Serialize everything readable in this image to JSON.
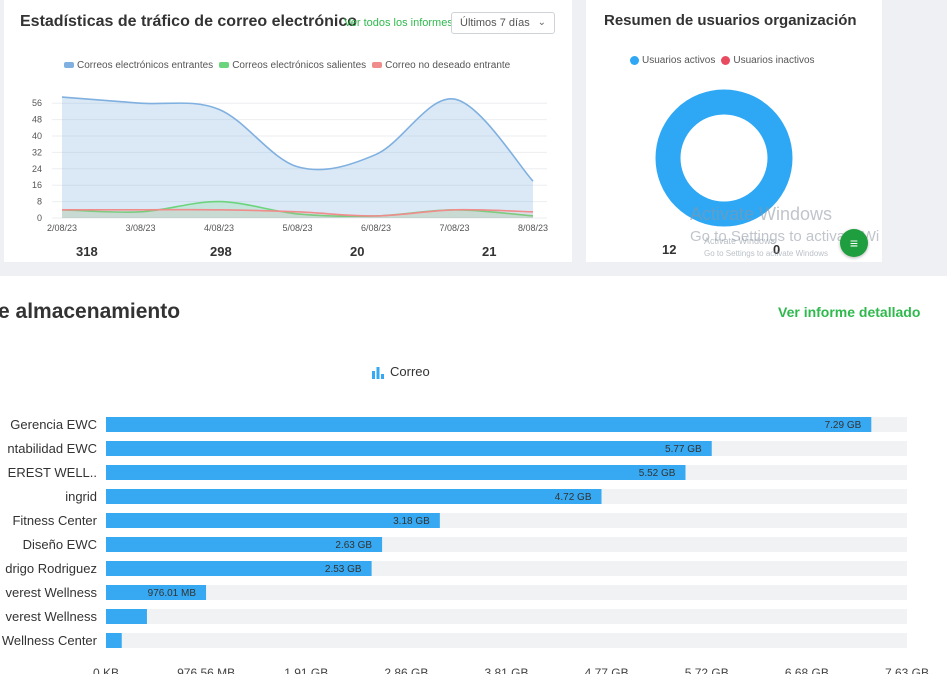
{
  "traffic": {
    "title": "Estadísticas de tráfico de correo electrónico",
    "view_all": "Ver todos los informes",
    "range": "Últimos 7 días",
    "legend": [
      "Correos electrónicos entrantes",
      "Correos electrónicos salientes",
      "Correo no deseado entrante"
    ],
    "totals": [
      "318",
      "298",
      "20",
      "21"
    ],
    "chart_data": {
      "type": "area",
      "x": [
        "2/08/23",
        "3/08/23",
        "4/08/23",
        "5/08/23",
        "6/08/23",
        "7/08/23",
        "8/08/23"
      ],
      "y_ticks": [
        0,
        8,
        16,
        24,
        32,
        40,
        48,
        56
      ],
      "ylim": [
        0,
        60
      ],
      "series": [
        {
          "name": "Correos electrónicos entrantes",
          "color": "#7fb0e0",
          "values": [
            59,
            56,
            53,
            25,
            31,
            58,
            18
          ]
        },
        {
          "name": "Correos electrónicos salientes",
          "color": "#6dd47e",
          "values": [
            4,
            3,
            8,
            2,
            1,
            4,
            1
          ]
        },
        {
          "name": "Correo no deseado entrante",
          "color": "#f08c8c",
          "values": [
            4,
            4,
            4,
            3,
            1,
            4,
            3
          ]
        }
      ]
    }
  },
  "users": {
    "title": "Resumen de usuarios organización",
    "legend_active": "Usuarios activos",
    "legend_inactive": "Usuarios inactivos",
    "active_count": "12",
    "inactive_count": "0",
    "color_active": "#2ea8f5",
    "color_inactive": "#e84a5f"
  },
  "watermark": {
    "line1": "Activate Windows",
    "line2": "Go to Settings to activate Wi",
    "line3": "Activate Windows",
    "line4": "Go to Settings to activate Windows"
  },
  "storage": {
    "title": "e almacenamiento",
    "detail_link": "Ver informe detallado",
    "legend": "Correo",
    "chart_data": {
      "type": "bar",
      "orientation": "horizontal",
      "color": "#36a9f2",
      "categories": [
        "Gerencia EWC",
        "ntabilidad EWC",
        "EREST WELL..",
        "ingrid",
        "Fitness Center",
        "Diseño EWC",
        "drigo Rodriguez",
        "verest Wellness",
        "verest Wellness",
        "Wellness Center"
      ],
      "values_gb": [
        7.29,
        5.77,
        5.52,
        4.72,
        3.18,
        2.63,
        2.53,
        0.953,
        0.39,
        0.15
      ],
      "labels": [
        "7.29 GB",
        "5.77 GB",
        "5.52 GB",
        "4.72 GB",
        "3.18 GB",
        "2.63 GB",
        "2.53 GB",
        "976.01 MB",
        "",
        ""
      ],
      "xlim_gb": [
        0,
        7.63
      ],
      "x_ticks": [
        "0 KB",
        "976.56 MB",
        "1.91 GB",
        "2.86 GB",
        "3.81 GB",
        "4.77 GB",
        "5.72 GB",
        "6.68 GB",
        "7.63 GB"
      ]
    }
  }
}
